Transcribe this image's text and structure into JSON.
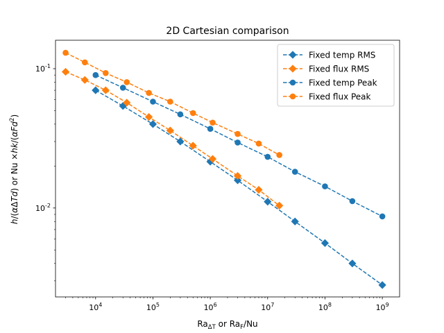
{
  "chart_data": {
    "type": "line",
    "title": "2D Cartesian comparison",
    "xlabel": "Ra_ΔT or Ra_F/Nu",
    "ylabel": "h/(αΔTd) or Nu ×hk/(αFd²)",
    "xscale": "log",
    "yscale": "log",
    "xlim": [
      2000,
      2000000000
    ],
    "ylim": [
      0.0023,
      0.16
    ],
    "x_ticks": [
      "10^4",
      "10^5",
      "10^6",
      "10^7",
      "10^8",
      "10^9"
    ],
    "y_ticks": [
      "10^-1",
      "10^-2"
    ],
    "grid": false,
    "legend_position": "top-right",
    "series": [
      {
        "name": "Fixed temp RMS",
        "color": "#1f77b4",
        "marker": "diamond",
        "linestyle": "dashed",
        "x": [
          10000,
          30000,
          100000,
          300000,
          1000000,
          3000000,
          10000000,
          30000000,
          100000000,
          300000000,
          1000000000
        ],
        "y": [
          0.07,
          0.054,
          0.04,
          0.03,
          0.0215,
          0.0158,
          0.0111,
          0.008,
          0.0056,
          0.004,
          0.0028
        ]
      },
      {
        "name": "Fixed flux RMS",
        "color": "#ff7f0e",
        "marker": "diamond",
        "linestyle": "dashed",
        "x": [
          3000,
          6500,
          15000,
          35000,
          85000,
          200000,
          500000,
          1100000,
          3000000,
          7000000,
          16000000
        ],
        "y": [
          0.095,
          0.083,
          0.07,
          0.057,
          0.045,
          0.036,
          0.028,
          0.0225,
          0.017,
          0.0135,
          0.0104
        ]
      },
      {
        "name": "Fixed temp Peak",
        "color": "#1f77b4",
        "marker": "circle",
        "linestyle": "dashed",
        "x": [
          10000,
          30000,
          100000,
          300000,
          1000000,
          3000000,
          10000000,
          30000000,
          100000000,
          300000000,
          1000000000
        ],
        "y": [
          0.09,
          0.073,
          0.058,
          0.047,
          0.037,
          0.0295,
          0.0233,
          0.0182,
          0.0143,
          0.0112,
          0.0087
        ]
      },
      {
        "name": "Fixed flux Peak",
        "color": "#ff7f0e",
        "marker": "circle",
        "linestyle": "dashed",
        "x": [
          3000,
          6500,
          15000,
          35000,
          85000,
          200000,
          500000,
          1100000,
          3000000,
          7000000,
          16000000
        ],
        "y": [
          0.13,
          0.111,
          0.093,
          0.08,
          0.067,
          0.058,
          0.048,
          0.041,
          0.034,
          0.029,
          0.024
        ]
      }
    ]
  }
}
